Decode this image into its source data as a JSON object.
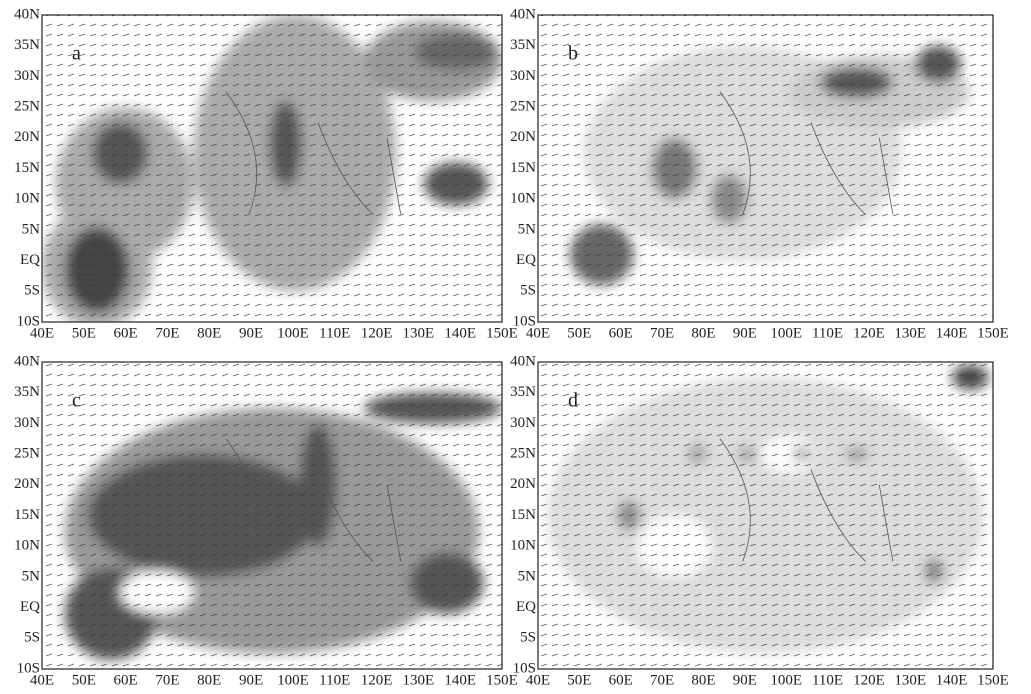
{
  "panels": [
    {
      "label": "a"
    },
    {
      "label": "b"
    },
    {
      "label": "c"
    },
    {
      "label": "d"
    }
  ],
  "x_labels": [
    "40E",
    "50E",
    "60E",
    "70E",
    "80E",
    "90E",
    "100E",
    "110E",
    "120E",
    "130E",
    "140E",
    "150E"
  ],
  "y_labels": [
    "40N",
    "35N",
    "30N",
    "25N",
    "20N",
    "15N",
    "10N",
    "5N",
    "EQ",
    "5S",
    "10S"
  ]
}
